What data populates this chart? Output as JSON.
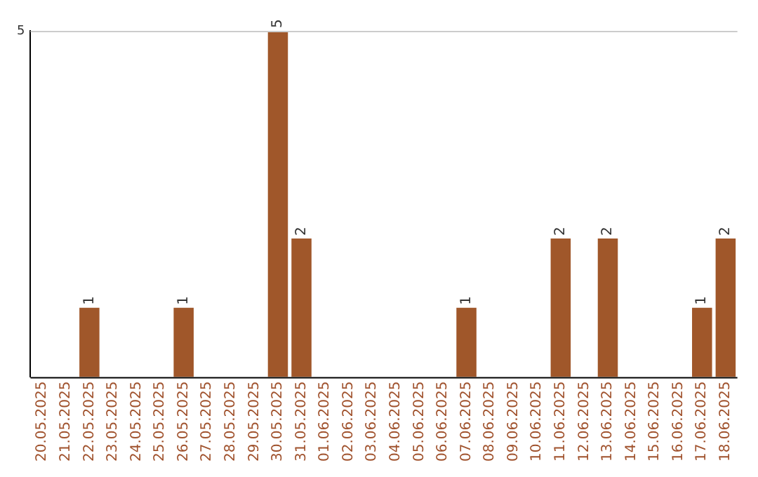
{
  "chart_data": {
    "type": "bar",
    "categories": [
      "20.05.2025",
      "21.05.2025",
      "22.05.2025",
      "23.05.2025",
      "24.05.2025",
      "25.05.2025",
      "26.05.2025",
      "27.05.2025",
      "28.05.2025",
      "29.05.2025",
      "30.05.2025",
      "31.05.2025",
      "01.06.2025",
      "02.06.2025",
      "03.06.2025",
      "04.06.2025",
      "05.06.2025",
      "06.06.2025",
      "07.06.2025",
      "08.06.2025",
      "09.06.2025",
      "10.06.2025",
      "11.06.2025",
      "12.06.2025",
      "13.06.2025",
      "14.06.2025",
      "15.06.2025",
      "16.06.2025",
      "17.06.2025",
      "18.06.2025"
    ],
    "values": [
      0,
      0,
      1,
      0,
      0,
      0,
      1,
      0,
      0,
      0,
      5,
      2,
      0,
      0,
      0,
      0,
      0,
      0,
      1,
      0,
      0,
      0,
      2,
      0,
      2,
      0,
      0,
      0,
      1,
      2
    ],
    "value_labels": [
      null,
      null,
      "1",
      null,
      null,
      null,
      "1",
      null,
      null,
      null,
      "5",
      "2",
      null,
      null,
      null,
      null,
      null,
      null,
      "1",
      null,
      null,
      null,
      "2",
      null,
      "2",
      null,
      null,
      null,
      "1",
      "2"
    ],
    "color": "#a0572a",
    "ylim": [
      0,
      5
    ],
    "yticks": [
      5
    ],
    "ref_lines": [
      {
        "axis": "y",
        "value": 5,
        "color": "#cccccc"
      }
    ]
  }
}
